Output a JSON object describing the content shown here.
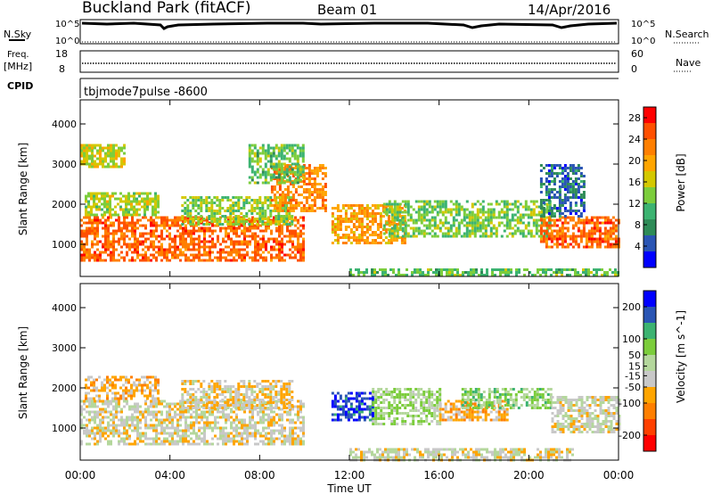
{
  "header": {
    "site": "Buckland Park (fitACF)",
    "beam": "Beam 01",
    "date": "14/Apr/2016",
    "cpid_mode": "tbjmode7pulse -8600"
  },
  "strip_labels": {
    "nsky": "N.Sky",
    "nsky_top": "10^5",
    "nsky_bottom": "10^0",
    "nsearch": "N.Search",
    "nsearch_top": "10^5",
    "nsearch_bottom": "10^0",
    "freq_line1": "Freq.",
    "freq_line2": "[MHz]",
    "freq_top": "18",
    "freq_bottom": "8",
    "nave": "Nave",
    "nave_top": "60",
    "nave_bottom": "0",
    "cpid": "CPID"
  },
  "colors": {
    "power_scale": [
      "#0000ff",
      "#2a55b4",
      "#2e8b57",
      "#3cb371",
      "#7ccd3c",
      "#d4c800",
      "#ffa500",
      "#ff7f00",
      "#ff5000",
      "#ff0000"
    ],
    "velocity_scale": [
      "#ff0000",
      "#ff4000",
      "#ff7f00",
      "#ffa500",
      "#c8c8c8",
      "#b4d79c",
      "#7ccd3c",
      "#3cb371",
      "#2a55b4",
      "#0000ff"
    ]
  },
  "chart_data": [
    {
      "type": "heatmap",
      "title": "Power",
      "xlabel": "Time UT",
      "ylabel": "Slant Range [km]",
      "x_ticks": [
        "00:00",
        "04:00",
        "08:00",
        "12:00",
        "16:00",
        "20:00",
        "00:00"
      ],
      "y_ticks": [
        "1000",
        "2000",
        "3000",
        "4000"
      ],
      "ylim": [
        200,
        4600
      ],
      "colorbar_label": "Power [dB]",
      "colorbar_ticks": [
        "4",
        "8",
        "12",
        "16",
        "20",
        "24",
        "28"
      ],
      "colorbar_range": [
        0,
        30
      ],
      "x_range_hours": [
        0,
        24
      ],
      "regions": [
        {
          "t": [
            0,
            10
          ],
          "r": [
            600,
            1700
          ],
          "value": 24
        },
        {
          "t": [
            0.2,
            3.5
          ],
          "r": [
            1700,
            2300
          ],
          "value": 15
        },
        {
          "t": [
            4.5,
            9.5
          ],
          "r": [
            1500,
            2200
          ],
          "value": 14
        },
        {
          "t": [
            8.5,
            11
          ],
          "r": [
            1800,
            3000
          ],
          "value": 22
        },
        {
          "t": [
            0,
            2
          ],
          "r": [
            2900,
            3500
          ],
          "value": 16
        },
        {
          "t": [
            7.5,
            10
          ],
          "r": [
            2500,
            3500
          ],
          "value": 12
        },
        {
          "t": [
            11.2,
            14.5
          ],
          "r": [
            1000,
            2000
          ],
          "value": 20
        },
        {
          "t": [
            13.5,
            21
          ],
          "r": [
            1200,
            2100
          ],
          "value": 13
        },
        {
          "t": [
            20.5,
            24
          ],
          "r": [
            900,
            1700
          ],
          "value": 24
        },
        {
          "t": [
            20.5,
            22.5
          ],
          "r": [
            1700,
            3000
          ],
          "value": 6
        },
        {
          "t": [
            12,
            24
          ],
          "r": [
            200,
            400
          ],
          "value": 12
        }
      ]
    },
    {
      "type": "heatmap",
      "title": "Velocity",
      "xlabel": "Time UT",
      "ylabel": "Slant Range [km]",
      "x_ticks": [
        "00:00",
        "04:00",
        "08:00",
        "12:00",
        "16:00",
        "20:00",
        "00:00"
      ],
      "y_ticks": [
        "1000",
        "2000",
        "3000",
        "4000"
      ],
      "ylim": [
        200,
        4600
      ],
      "colorbar_label": "Velocity [m s^-1]",
      "colorbar_ticks": [
        "-200",
        "-100",
        "-50",
        "-15",
        "15",
        "50",
        "100",
        "200"
      ],
      "colorbar_range": [
        -250,
        250
      ],
      "x_range_hours": [
        0,
        24
      ],
      "regions": [
        {
          "t": [
            0,
            10
          ],
          "r": [
            600,
            1700
          ],
          "value": -20
        },
        {
          "t": [
            0.2,
            3.5
          ],
          "r": [
            1700,
            2300
          ],
          "value": -60
        },
        {
          "t": [
            4.5,
            9.5
          ],
          "r": [
            1500,
            2200
          ],
          "value": -40
        },
        {
          "t": [
            11.2,
            13
          ],
          "r": [
            1200,
            1900
          ],
          "value": 200
        },
        {
          "t": [
            13,
            16
          ],
          "r": [
            1100,
            2000
          ],
          "value": 40
        },
        {
          "t": [
            16,
            19
          ],
          "r": [
            1200,
            1700
          ],
          "value": -70
        },
        {
          "t": [
            17,
            21
          ],
          "r": [
            1500,
            2000
          ],
          "value": 60
        },
        {
          "t": [
            21,
            24
          ],
          "r": [
            900,
            1800
          ],
          "value": -10
        },
        {
          "t": [
            12,
            22
          ],
          "r": [
            200,
            500
          ],
          "value": -15
        }
      ]
    }
  ]
}
